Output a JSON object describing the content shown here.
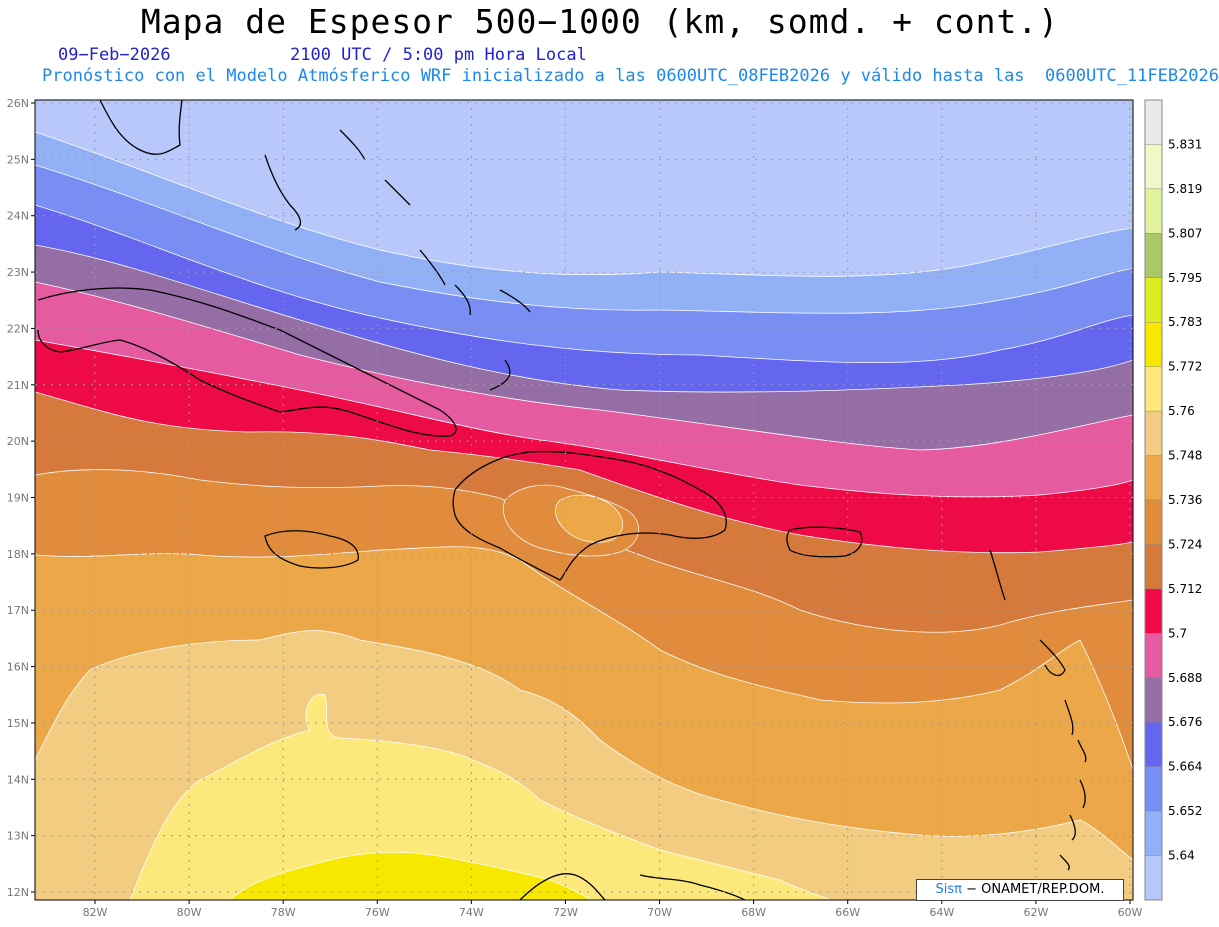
{
  "header": {
    "title": "Mapa de Espesor 500−1000 (km, somd. + cont.)",
    "date": "09−Feb−2026",
    "time": "2100 UTC / 5:00 pm Hora Local",
    "description": "Pronóstico con el Modelo Atmósferico WRF inicializado a las 0600UTC_08FEB2026 y válido hasta las  0600UTC_11FEB2026"
  },
  "map": {
    "region": "Caribbean",
    "lat_labels": [
      "26N",
      "25N",
      "24N",
      "23N",
      "22N",
      "21N",
      "20N",
      "19N",
      "18N",
      "17N",
      "16N",
      "15N",
      "14N",
      "13N",
      "12N"
    ],
    "lon_labels": [
      "82W",
      "80W",
      "78W",
      "76W",
      "74W",
      "72W",
      "70W",
      "68W",
      "66W",
      "64W",
      "62W",
      "60W"
    ],
    "grid": true,
    "coastline_color": "#000000"
  },
  "colorbar": {
    "labels": [
      "5.831",
      "5.819",
      "5.807",
      "5.795",
      "5.783",
      "5.772",
      "5.76",
      "5.748",
      "5.736",
      "5.724",
      "5.712",
      "5.7",
      "5.688",
      "5.676",
      "5.664",
      "5.652",
      "5.64"
    ],
    "colors": [
      "#eaeaea",
      "#f1f8c8",
      "#e2f3a0",
      "#aac864",
      "#dcec1e",
      "#f8e800",
      "#fde87c",
      "#f2cc80",
      "#eca848",
      "#e08c3c",
      "#d57a3c",
      "#ee0a46",
      "#e65aa0",
      "#966ea6",
      "#6466f0",
      "#788ef2",
      "#92b0f6",
      "#b8c8fa"
    ]
  },
  "credit": {
    "brand": "Sisπ",
    "text": "− ONAMET/REP.DOM."
  }
}
